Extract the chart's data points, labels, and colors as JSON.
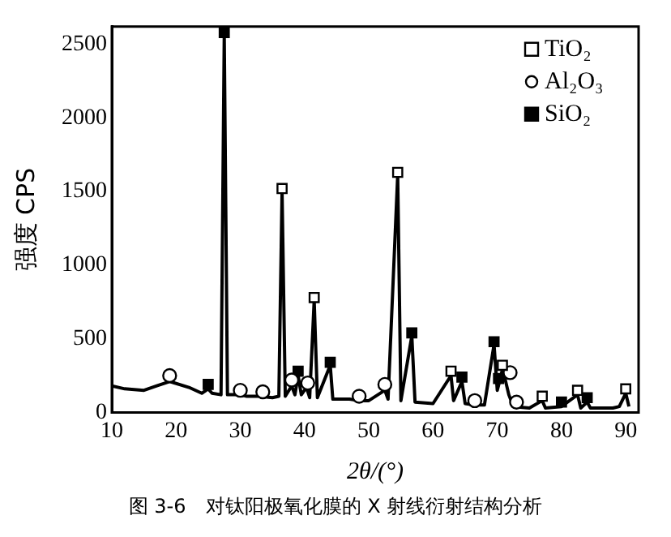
{
  "chart_data": {
    "type": "line",
    "xlabel": "2θ/(°)",
    "ylabel": "强度 CPS",
    "annotations": [
      "图 3-6　对钛阳极氧化膜的 X 射线衍射结构分析"
    ],
    "xlim": [
      10,
      92
    ],
    "xticks": [
      10,
      20,
      30,
      40,
      50,
      60,
      70,
      80,
      90
    ],
    "ylim": [
      0,
      2620
    ],
    "yticks": [
      0,
      500,
      1000,
      1500,
      2000,
      2500
    ],
    "grid": false,
    "legend": "top right",
    "series": [
      {
        "type": "line",
        "color": "#000000",
        "marker": "none",
        "x": [
          10,
          12,
          15,
          17,
          19,
          22,
          24,
          25,
          25.6,
          27,
          27.5,
          28,
          30,
          31,
          33,
          35,
          36,
          36.5,
          37,
          38,
          38.5,
          39,
          39.5,
          40.3,
          40.8,
          41.5,
          42,
          44,
          44.4,
          47,
          48.5,
          50,
          52.5,
          53,
          54.5,
          55,
          56.7,
          57.2,
          60,
          62.8,
          63.2,
          64.5,
          65,
          66.5,
          68,
          69.5,
          70,
          70.3,
          70.8,
          71.2,
          71.8,
          72.5,
          75,
          77,
          77.5,
          80,
          82.5,
          83,
          84,
          84.5,
          88,
          89,
          90,
          90.5
        ],
        "values": [
          180,
          160,
          150,
          180,
          210,
          170,
          130,
          160,
          130,
          120,
          2560,
          120,
          120,
          110,
          110,
          100,
          110,
          1500,
          110,
          180,
          120,
          250,
          120,
          170,
          100,
          760,
          100,
          320,
          90,
          90,
          80,
          80,
          150,
          90,
          1610,
          80,
          520,
          70,
          60,
          250,
          80,
          210,
          60,
          50,
          50,
          460,
          150,
          200,
          290,
          230,
          120,
          40,
          30,
          80,
          30,
          40,
          120,
          30,
          70,
          30,
          30,
          40,
          130,
          40
        ]
      },
      {
        "type": "scatter",
        "name": "TiO₂",
        "color": "#ffffff",
        "marker": "square",
        "x": [
          36.5,
          41.5,
          54.5,
          62.8,
          70.8,
          77,
          82.5,
          90
        ],
        "values": [
          1520,
          780,
          1630,
          280,
          320,
          110,
          150,
          160
        ]
      },
      {
        "type": "scatter",
        "name": "Al₂O₃",
        "color": "#ffffff",
        "marker": "circle",
        "x": [
          19,
          30,
          33.5,
          38,
          40.5,
          48.5,
          52.5,
          66.5,
          72,
          73
        ],
        "values": [
          250,
          150,
          140,
          220,
          200,
          110,
          190,
          80,
          270,
          70
        ]
      },
      {
        "type": "scatter",
        "name": "SiO₂",
        "color": "#000000",
        "marker": "square",
        "x": [
          25,
          27.5,
          39,
          44,
          56.7,
          64.5,
          69.5,
          70.2,
          80,
          84
        ],
        "values": [
          190,
          2580,
          280,
          340,
          540,
          240,
          480,
          230,
          70,
          100
        ]
      }
    ]
  }
}
